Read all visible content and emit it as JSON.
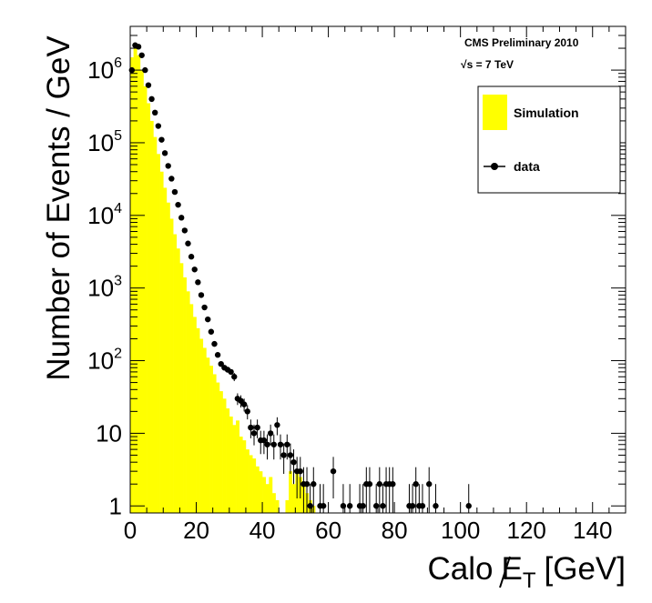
{
  "chart_data": {
    "type": "bar",
    "title": "",
    "annotations": [
      "CMS Preliminary 2010",
      "√s = 7 TeV"
    ],
    "xlabel": {
      "prefix": "Calo",
      "symbol": "E",
      "subscript": "T",
      "unit": "[GeV]"
    },
    "ylabel": "Number of Events / GeV",
    "xlim": [
      0,
      150
    ],
    "ylim": [
      0.8,
      4000000
    ],
    "yscale": "log",
    "grid": false,
    "legend_position": "top-right",
    "x_ticks": [
      "0",
      "20",
      "40",
      "60",
      "80",
      "100",
      "120",
      "140"
    ],
    "y_ticks": [
      {
        "value": 1,
        "base": "1",
        "exp": ""
      },
      {
        "value": 10,
        "base": "10",
        "exp": ""
      },
      {
        "value": 100,
        "base": "10",
        "exp": "2"
      },
      {
        "value": 1000,
        "base": "10",
        "exp": "3"
      },
      {
        "value": 10000,
        "base": "10",
        "exp": "4"
      },
      {
        "value": 100000,
        "base": "10",
        "exp": "5"
      },
      {
        "value": 1000000,
        "base": "10",
        "exp": "6"
      }
    ],
    "series": [
      {
        "name": "Simulation",
        "style": "filled-histogram",
        "color": "#ffff00",
        "bin_width": 1,
        "x": [
          0,
          1,
          2,
          3,
          4,
          5,
          6,
          7,
          8,
          9,
          10,
          11,
          12,
          13,
          14,
          15,
          16,
          17,
          18,
          19,
          20,
          21,
          22,
          23,
          24,
          25,
          26,
          27,
          28,
          29,
          30,
          31,
          32,
          33,
          34,
          35,
          36,
          37,
          38,
          39,
          40,
          41,
          42,
          43,
          44,
          45,
          46,
          47,
          48,
          49,
          50,
          51,
          52,
          53,
          54,
          55,
          56
        ],
        "values": [
          1500000,
          2000000,
          1600000,
          1000000,
          600000,
          350000,
          200000,
          120000,
          70000,
          40000,
          24000,
          15000,
          9000,
          5500,
          3500,
          2200,
          1400,
          900,
          600,
          400,
          280,
          200,
          150,
          110,
          85,
          65,
          50,
          38,
          30,
          22,
          17,
          13,
          15,
          9,
          8,
          6,
          5,
          4.5,
          3.5,
          3,
          2.5,
          2,
          2.5,
          1.5,
          1.2,
          0.5,
          0.5,
          1.2,
          3,
          2,
          3,
          2.5,
          2,
          1.5,
          1.2,
          1,
          0.5
        ]
      },
      {
        "name": "data",
        "style": "points-with-errors",
        "color": "#000000",
        "x": [
          0.5,
          1.5,
          2.5,
          3.5,
          4.5,
          5.5,
          6.5,
          7.5,
          8.5,
          9.5,
          10.5,
          11.5,
          12.5,
          13.5,
          14.5,
          15.5,
          16.5,
          17.5,
          18.5,
          19.5,
          20.5,
          21.5,
          22.5,
          23.5,
          24.5,
          25.5,
          26.5,
          27.5,
          28.5,
          29.5,
          30.5,
          31.5,
          32.5,
          33.5,
          34.5,
          35.5,
          36.5,
          37.5,
          38.5,
          39.5,
          40.5,
          41.5,
          42.5,
          43.5,
          44.5,
          45.5,
          46.5,
          47.5,
          48.5,
          49.5,
          50.5,
          51.5,
          52.5,
          53.5,
          54.5,
          55.5,
          57.5,
          58.5,
          61.5,
          64.5,
          66.5,
          69.5,
          70.5,
          71.5,
          72.5,
          74.5,
          75.5,
          76.5,
          77.5,
          78.5,
          79.5,
          84.5,
          85.5,
          86.5,
          87.5,
          88.5,
          90.5,
          92.5,
          102.5
        ],
        "values": [
          1000000,
          2200000,
          2100000,
          1600000,
          1000000,
          620000,
          400000,
          260000,
          170000,
          110000,
          72000,
          48000,
          32000,
          21000,
          14000,
          9300,
          6200,
          4100,
          2700,
          1800,
          1200,
          800,
          540,
          370,
          250,
          170,
          120,
          90,
          80,
          75,
          70,
          60,
          30,
          28,
          25,
          20,
          12,
          10,
          12,
          8,
          8,
          7,
          10,
          7,
          13,
          7,
          5,
          7,
          5,
          4,
          3,
          3,
          2,
          2,
          1,
          2,
          1,
          1,
          3,
          1,
          1,
          1,
          1,
          2,
          2,
          1,
          2,
          1,
          2,
          2,
          2,
          1,
          1,
          2,
          1,
          1,
          2,
          1,
          1
        ]
      }
    ],
    "legend": [
      {
        "label": "Simulation",
        "symbol": "yellow-box"
      },
      {
        "label": "data",
        "symbol": "black-marker-with-line"
      }
    ]
  }
}
